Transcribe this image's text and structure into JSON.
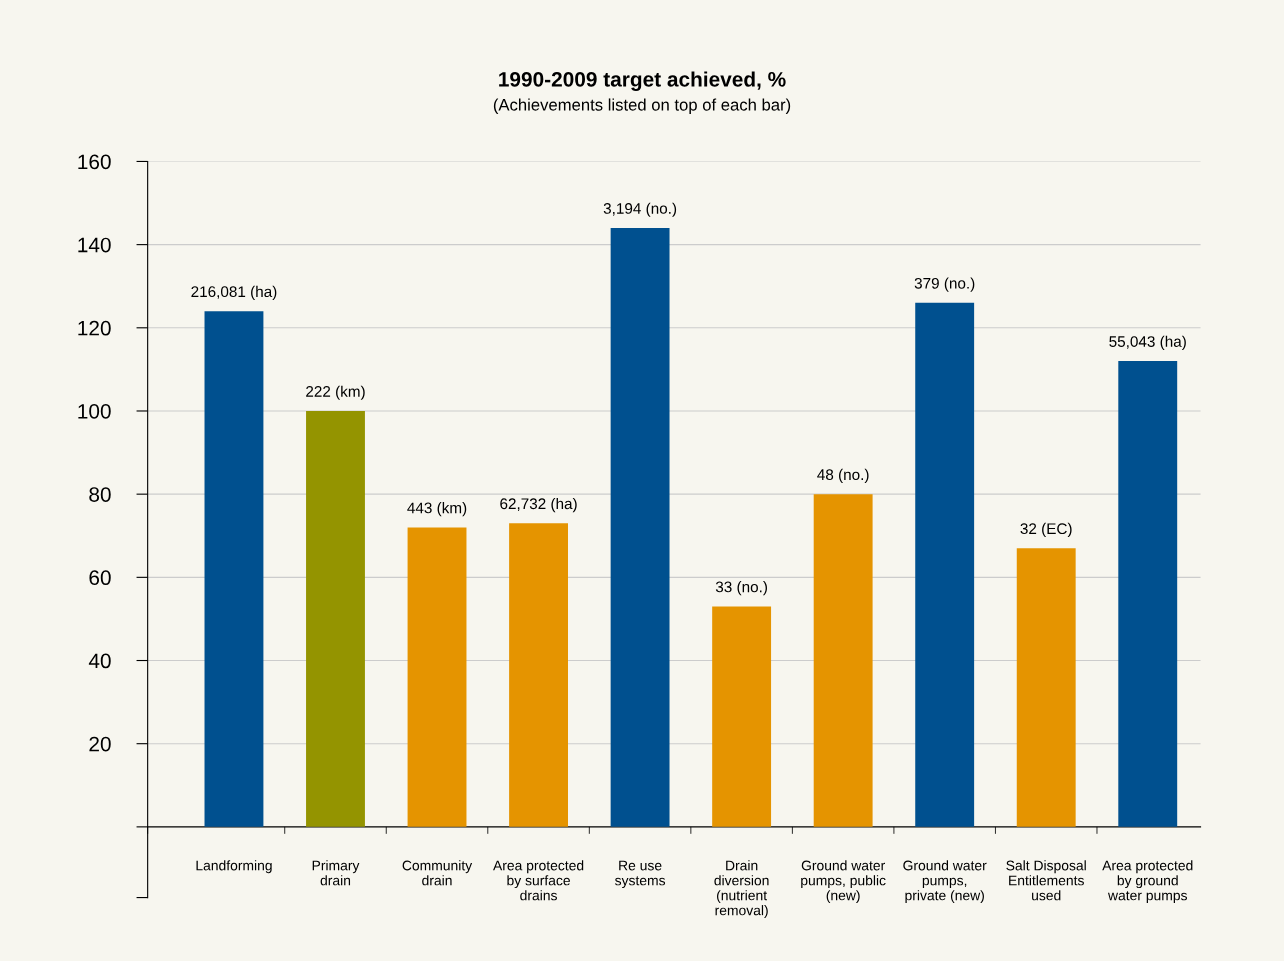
{
  "chart_data": {
    "type": "bar",
    "title": "1990-2009 target achieved, %",
    "subtitle": "(Achievements listed on top of each bar)",
    "categories": [
      "Landforming",
      "Primary\ndrain",
      "Community\ndrain",
      "Area protected\nby surface\ndrains",
      "Re use\nsystems",
      "Drain\ndiversion\n(nutrient\nremoval)",
      "Ground water\npumps, public\n(new)",
      "Ground water\npumps,\nprivate (new)",
      "Salt Disposal\nEntitlements\nused",
      "Area protected\nby ground\nwater pumps"
    ],
    "values": [
      124,
      100,
      72,
      73,
      144,
      53,
      80,
      126,
      67,
      112
    ],
    "colors": [
      "#00508f",
      "#949400",
      "#e59400",
      "#e59400",
      "#00508f",
      "#e59400",
      "#e59400",
      "#00508f",
      "#e59400",
      "#00508f"
    ],
    "annotations": [
      {
        "text": "216,081 (ha)",
        "x": "Landforming",
        "y": 124
      },
      {
        "text": "222 (km)",
        "x": "Primary\ndrain",
        "y": 100
      },
      {
        "text": "443 (km)",
        "x": "Community\ndrain",
        "y": 72
      },
      {
        "text": "62,732 (ha)",
        "x": "Area protected\nby surface\ndrains",
        "y": 73
      },
      {
        "text": "3,194 (no.)",
        "x": "Re use\nsystems",
        "y": 144
      },
      {
        "text": "33 (no.)",
        "x": "Drain\ndiversion\n(nutrient\nremoval)",
        "y": 53
      },
      {
        "text": "48 (no.)",
        "x": "Ground water\npumps, public\n(new)",
        "y": 80
      },
      {
        "text": "379 (no.)",
        "x": "Ground water\npumps,\nprivate (new)",
        "y": 126
      },
      {
        "text": "32 (EC)",
        "x": "Salt Disposal\nEntitlements\nused",
        "y": 67
      },
      {
        "text": "55,043 (ha)",
        "x": "Area protected\nby ground\nwater pumps",
        "y": 112
      }
    ],
    "ylim": [
      -17,
      160
    ],
    "yticks": [
      {
        "value": -17,
        "label": null
      },
      {
        "value": 0,
        "label": null
      },
      20,
      40,
      60,
      80,
      100,
      120,
      140,
      160
    ],
    "grid": "y"
  }
}
